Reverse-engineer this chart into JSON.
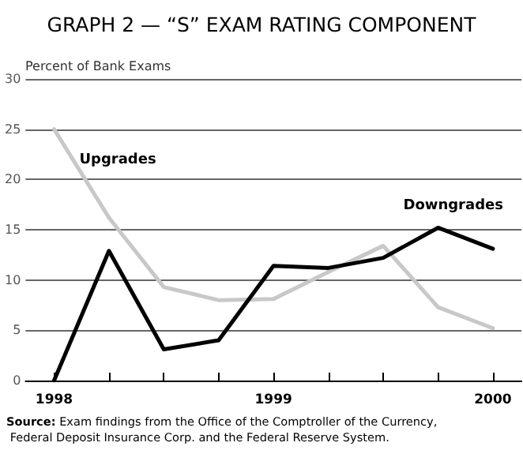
{
  "chart_data": {
    "type": "line",
    "title": "GRAPH 2 — “S” EXAM RATING COMPONENT",
    "ylabel": "Percent of Bank Exams",
    "x": [
      1998,
      1998.25,
      1998.5,
      1998.75,
      1999,
      1999.25,
      1999.5,
      1999.75,
      2000
    ],
    "series": [
      {
        "name": "Upgrades",
        "color": "#c8c8c8",
        "values": [
          25,
          16.2,
          9.3,
          8,
          8.1,
          10.8,
          13.4,
          7.3,
          5.2
        ]
      },
      {
        "name": "Downgrades",
        "color": "#000000",
        "values": [
          0,
          12.9,
          3.1,
          4,
          11.4,
          11.2,
          12.2,
          15.2,
          13.1
        ]
      }
    ],
    "xlim": [
      1997.87,
      2000.13
    ],
    "xticks": [
      1998,
      {
        "value": 1998.25,
        "label": null
      },
      {
        "value": 1998.5,
        "label": null
      },
      {
        "value": 1998.75,
        "label": null
      },
      1999,
      {
        "value": 1999.25,
        "label": null
      },
      {
        "value": 1999.5,
        "label": null
      },
      {
        "value": 1999.75,
        "label": null
      },
      2000
    ],
    "ylim": [
      0,
      30
    ],
    "yticks": [
      0,
      5,
      10,
      15,
      20,
      25,
      30
    ],
    "grid": "y",
    "legend": false,
    "marker": "none",
    "line_style": "solid",
    "annotations": [
      "Source: Exam findings from the Office of the Comptroller of the Currency, Federal Deposit Insurance Corp. and the Federal Reserve System."
    ]
  }
}
